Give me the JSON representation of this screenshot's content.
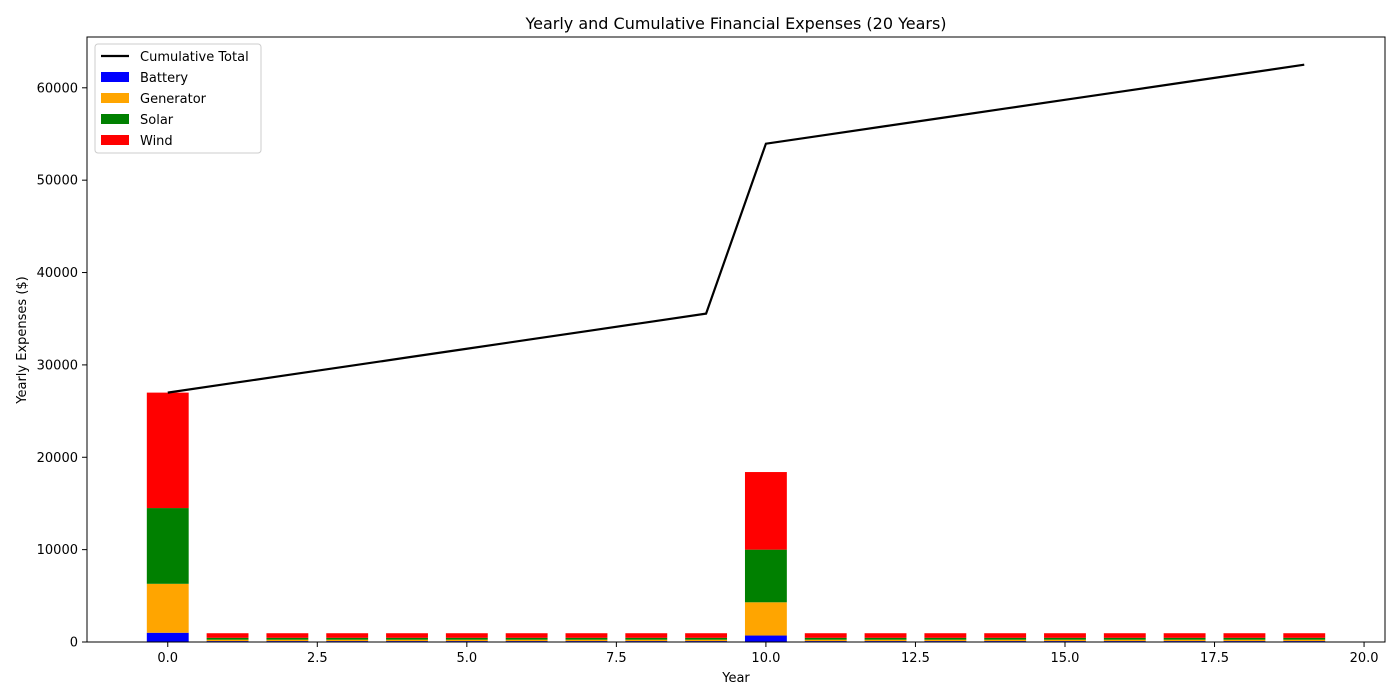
{
  "chart_data": {
    "type": "bar",
    "title": "Yearly and Cumulative Financial Expenses (20 Years)",
    "xlabel": "Year",
    "ylabel": "Yearly Expenses ($)",
    "xlim": [
      -1.35,
      20.35
    ],
    "ylim": [
      0,
      65500
    ],
    "xticks": [
      0.0,
      2.5,
      5.0,
      7.5,
      10.0,
      12.5,
      15.0,
      17.5,
      20.0
    ],
    "xtick_labels": [
      "0.0",
      "2.5",
      "5.0",
      "7.5",
      "10.0",
      "12.5",
      "15.0",
      "17.5",
      "20.0"
    ],
    "yticks": [
      0,
      10000,
      20000,
      30000,
      40000,
      50000,
      60000
    ],
    "ytick_labels": [
      "0",
      "10000",
      "20000",
      "30000",
      "40000",
      "50000",
      "60000"
    ],
    "grid": false,
    "legend_position": "top-left",
    "x": [
      0,
      1,
      2,
      3,
      4,
      5,
      6,
      7,
      8,
      9,
      10,
      11,
      12,
      13,
      14,
      15,
      16,
      17,
      18,
      19
    ],
    "series": [
      {
        "name": "Battery",
        "color": "#0000ff",
        "values": [
          1000,
          100,
          100,
          100,
          100,
          100,
          100,
          100,
          100,
          100,
          700,
          100,
          100,
          100,
          100,
          100,
          100,
          100,
          100,
          100
        ]
      },
      {
        "name": "Generator",
        "color": "#ffa500",
        "values": [
          5300,
          150,
          150,
          150,
          150,
          150,
          150,
          150,
          150,
          150,
          3600,
          150,
          150,
          150,
          150,
          150,
          150,
          150,
          150,
          150
        ]
      },
      {
        "name": "Solar",
        "color": "#008000",
        "values": [
          8200,
          200,
          200,
          200,
          200,
          200,
          200,
          200,
          200,
          200,
          5700,
          200,
          200,
          200,
          200,
          200,
          200,
          200,
          200,
          200
        ]
      },
      {
        "name": "Wind",
        "color": "#ff0000",
        "values": [
          12500,
          500,
          500,
          500,
          500,
          500,
          500,
          500,
          500,
          500,
          8400,
          500,
          500,
          500,
          500,
          500,
          500,
          500,
          500,
          500
        ]
      }
    ],
    "line": {
      "name": "Cumulative Total",
      "color": "#000000",
      "values": [
        27000,
        27950,
        28900,
        29850,
        30800,
        31750,
        32700,
        33650,
        34600,
        35550,
        53950,
        54900,
        55850,
        56800,
        57750,
        58700,
        59650,
        60600,
        61550,
        62500
      ]
    }
  }
}
